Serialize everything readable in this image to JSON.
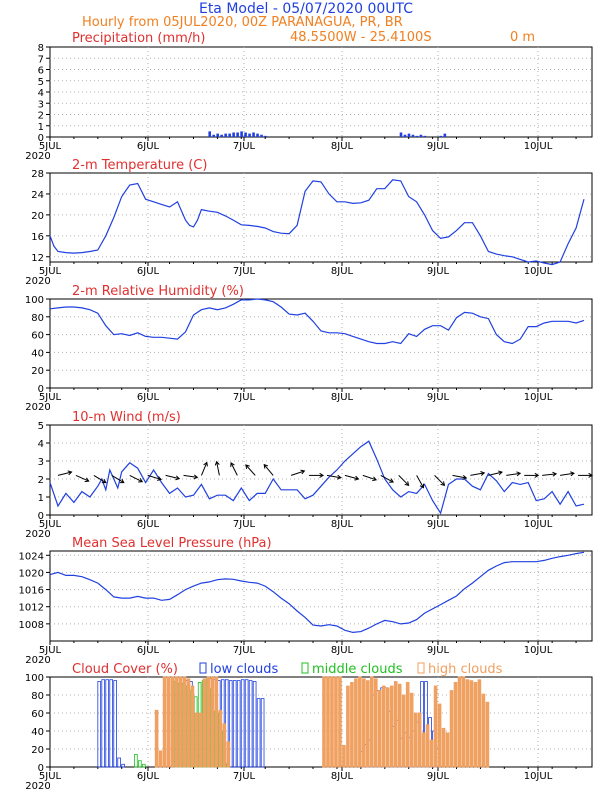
{
  "header": {
    "title": "Eta Model - 05/07/2020 00UTC",
    "subtitle": "Hourly from 05JUL2020, 00Z  PARANAGUA, PR, BR",
    "coords": "48.5500W - 25.4100S",
    "elevation": "0  m"
  },
  "colors": {
    "title": "#2040e0",
    "subtitle": "#f08020",
    "panel_title": "#e03030",
    "line": "#2040e0",
    "low": "#2040e0",
    "mid": "#20c020",
    "high": "#f0a060",
    "grid": "#b0b0b0"
  },
  "days": [
    "5JUL",
    "6JUL",
    "7JUL",
    "8JUL",
    "9JUL",
    "10JUL"
  ],
  "year_label": "2020",
  "chart_data": [
    {
      "id": "precip",
      "type": "bar",
      "title": "Precipitation (mm/h)",
      "ylim": [
        0,
        8
      ],
      "yticks": [
        0,
        1,
        2,
        3,
        4,
        5,
        6,
        7,
        8
      ],
      "series": [
        {
          "name": "Precipitation",
          "x": [
            40,
            41,
            42,
            43,
            44,
            45,
            46,
            47,
            48,
            49,
            50,
            51,
            52,
            53,
            54,
            88,
            89,
            90,
            91,
            92,
            93,
            94,
            98,
            99
          ],
          "values": [
            0.5,
            0.2,
            0.3,
            0.2,
            0.3,
            0.3,
            0.4,
            0.4,
            0.5,
            0.4,
            0.3,
            0.4,
            0.3,
            0.2,
            0.1,
            0.4,
            0.2,
            0.3,
            0.2,
            0.1,
            0.2,
            0.1,
            0.1,
            0.3
          ]
        }
      ]
    },
    {
      "id": "temp",
      "type": "line",
      "title": "2-m Temperature (C)",
      "ylim": [
        11,
        28
      ],
      "yticks": [
        12,
        16,
        20,
        24,
        28
      ],
      "series": [
        {
          "name": "Temperature",
          "x": [
            0,
            1,
            2,
            4,
            6,
            8,
            10,
            12,
            14,
            16,
            18,
            20,
            22,
            24,
            26,
            28,
            30,
            32,
            34,
            35,
            36,
            37,
            38,
            40,
            42,
            44,
            46,
            48,
            50,
            52,
            54,
            56,
            58,
            60,
            62,
            64,
            66,
            68,
            70,
            72,
            74,
            76,
            78,
            80,
            82,
            84,
            86,
            88,
            90,
            92,
            94,
            96,
            98,
            100,
            102,
            104,
            106,
            108,
            110,
            112,
            114,
            116,
            118,
            120,
            122,
            124,
            126,
            128,
            130,
            132,
            134
          ],
          "values": [
            16,
            14,
            13,
            12.8,
            12.7,
            12.8,
            13,
            13.3,
            16,
            19.5,
            23.5,
            25.7,
            26,
            23,
            22.5,
            22,
            21.5,
            22.5,
            19,
            18,
            17.7,
            19,
            21,
            20.7,
            20.5,
            19.8,
            19,
            18.1,
            18,
            17.8,
            17.5,
            16.8,
            16.5,
            16.4,
            18,
            24.5,
            26.5,
            26.3,
            24,
            22.5,
            22.5,
            22.2,
            22.3,
            22.8,
            25,
            25,
            26.7,
            26.5,
            23.5,
            22.5,
            20,
            17,
            15.5,
            15.8,
            17,
            18.5,
            18.5,
            16,
            13,
            12.5,
            12.2,
            12,
            11.5,
            11,
            11.2,
            10.8,
            10.5,
            11,
            14.5,
            17.5,
            23
          ]
        }
      ]
    },
    {
      "id": "rh",
      "type": "line",
      "title": "2-m Relative Humidity (%)",
      "ylim": [
        0,
        100
      ],
      "yticks": [
        0,
        20,
        40,
        60,
        80,
        100
      ],
      "series": [
        {
          "name": "Relative Humidity",
          "x": [
            0,
            2,
            4,
            6,
            8,
            10,
            12,
            14,
            16,
            18,
            20,
            22,
            24,
            26,
            28,
            30,
            32,
            34,
            36,
            38,
            40,
            42,
            44,
            46,
            48,
            50,
            52,
            54,
            56,
            58,
            60,
            62,
            64,
            66,
            68,
            70,
            72,
            74,
            76,
            78,
            80,
            82,
            84,
            86,
            88,
            90,
            92,
            94,
            96,
            98,
            100,
            102,
            104,
            106,
            108,
            110,
            112,
            114,
            116,
            118,
            120,
            122,
            124,
            126,
            128,
            130,
            132,
            134
          ],
          "values": [
            89,
            90,
            91,
            91,
            90,
            88,
            84,
            70,
            60,
            61,
            59,
            62,
            58,
            57,
            57,
            56,
            55,
            63,
            82,
            88,
            90,
            88,
            90,
            94,
            99,
            99,
            100,
            99,
            97,
            91,
            83,
            82,
            84,
            75,
            64,
            62,
            62,
            61,
            58,
            55,
            52,
            50,
            50,
            52,
            50,
            61,
            58,
            66,
            70,
            70,
            65,
            79,
            85,
            84,
            80,
            78,
            60,
            52,
            50,
            55,
            69,
            69,
            73,
            75,
            75,
            75,
            73,
            76
          ]
        }
      ]
    },
    {
      "id": "wind",
      "type": "line",
      "title": "10-m Wind (m/s)",
      "ylim": [
        0,
        5
      ],
      "yticks": [
        0,
        1,
        2,
        3,
        4,
        5
      ],
      "series": [
        {
          "name": "Wind speed",
          "x": [
            0,
            2,
            4,
            6,
            8,
            10,
            12,
            13,
            14,
            15,
            16,
            17,
            18,
            20,
            22,
            24,
            26,
            28,
            30,
            32,
            34,
            36,
            38,
            40,
            42,
            44,
            46,
            48,
            50,
            52,
            54,
            56,
            58,
            60,
            62,
            64,
            66,
            68,
            70,
            72,
            74,
            76,
            78,
            80,
            82,
            84,
            86,
            88,
            90,
            92,
            94,
            96,
            98,
            100,
            102,
            104,
            106,
            108,
            110,
            112,
            114,
            116,
            118,
            120,
            122,
            124,
            126,
            128,
            130,
            132,
            134
          ],
          "values": [
            1.8,
            0.5,
            1.2,
            0.7,
            1.3,
            1.0,
            1.6,
            2.0,
            1.4,
            2.5,
            2.0,
            1.5,
            2.4,
            2.9,
            2.6,
            1.8,
            2.5,
            1.8,
            1.2,
            1.5,
            1.0,
            1.1,
            1.7,
            0.9,
            1.1,
            1.1,
            0.8,
            1.5,
            0.8,
            1.2,
            1.2,
            2.0,
            1.4,
            1.4,
            1.4,
            0.9,
            1.1,
            1.6,
            2.1,
            2.5,
            3.0,
            3.4,
            3.8,
            4.1,
            3.1,
            2.0,
            1.4,
            1.0,
            1.3,
            1.2,
            1.7,
            0.8,
            0.1,
            1.7,
            2.0,
            2.0,
            1.6,
            1.4,
            2.3,
            1.9,
            1.3,
            1.8,
            1.7,
            1.8,
            0.8,
            0.9,
            1.3,
            0.6,
            1.3,
            0.5,
            0.6
          ]
        }
      ],
      "barbs_u": [
        0.8,
        1.8,
        1.5,
        2.0,
        1.6,
        2.0,
        1.7,
        1.4,
        0.5,
        -0.3,
        -0.6,
        -0.9,
        -0.5,
        0.3,
        0.8,
        1.2,
        1.5,
        1.8,
        1.3,
        0.8,
        0.5,
        0.6,
        1.6,
        2.2,
        2.5,
        2.0,
        1.2,
        1.8,
        2.6,
        1.6
      ],
      "barbs_v": [
        0.2,
        -0.8,
        -0.9,
        -1.2,
        -0.8,
        -0.6,
        -0.4,
        -0.2,
        1.2,
        1.5,
        1.2,
        1.0,
        0.6,
        0.1,
        0.0,
        -0.2,
        -0.4,
        -0.6,
        -0.7,
        -0.8,
        -0.9,
        -0.6,
        -0.3,
        0.4,
        0.6,
        0.3,
        0.0,
        0.2,
        0.4,
        0.0
      ]
    },
    {
      "id": "mslp",
      "type": "line",
      "title": "Mean Sea Level Pressure (hPa)",
      "ylim": [
        1004,
        1025
      ],
      "yticks": [
        1008,
        1012,
        1016,
        1020,
        1024
      ],
      "series": [
        {
          "name": "MSLP",
          "x": [
            0,
            2,
            4,
            6,
            8,
            10,
            12,
            14,
            16,
            18,
            20,
            22,
            24,
            26,
            28,
            30,
            32,
            34,
            36,
            38,
            40,
            42,
            44,
            46,
            48,
            50,
            52,
            54,
            56,
            58,
            60,
            62,
            64,
            66,
            68,
            70,
            72,
            74,
            76,
            78,
            80,
            82,
            84,
            86,
            88,
            90,
            92,
            94,
            96,
            98,
            100,
            102,
            104,
            106,
            108,
            110,
            112,
            114,
            116,
            118,
            120,
            122,
            124,
            126,
            128,
            130,
            132,
            134
          ],
          "values": [
            1019.5,
            1020,
            1019.3,
            1019.3,
            1019,
            1018.3,
            1017.5,
            1016,
            1014.3,
            1014,
            1014,
            1014.4,
            1014,
            1014,
            1013.5,
            1013.7,
            1014.8,
            1016,
            1016.8,
            1017.5,
            1017.8,
            1018.3,
            1018.5,
            1018.4,
            1018,
            1017.7,
            1017.5,
            1016.8,
            1015.5,
            1014,
            1012.7,
            1011,
            1009.5,
            1007.7,
            1007.5,
            1007.8,
            1007.5,
            1006.5,
            1006,
            1006.2,
            1007,
            1008,
            1008.8,
            1008.5,
            1008,
            1008.2,
            1009,
            1010.5,
            1011.5,
            1012.5,
            1013.5,
            1014.5,
            1016.2,
            1017.5,
            1019,
            1020.5,
            1021.5,
            1022.3,
            1022.5,
            1022.5,
            1022.5,
            1022.5,
            1022.8,
            1023.3,
            1023.7,
            1024,
            1024.4,
            1024.7
          ]
        }
      ]
    },
    {
      "id": "cloud",
      "type": "bar",
      "title": "Cloud Cover (%)",
      "ylim": [
        0,
        100
      ],
      "yticks": [
        0,
        20,
        40,
        60,
        80,
        100
      ],
      "legend": [
        "low clouds",
        "middle clouds",
        "high clouds"
      ],
      "series": [
        {
          "name": "low clouds",
          "x": [
            12,
            13,
            14,
            15,
            16,
            17,
            18,
            31,
            32,
            33,
            34,
            35,
            37,
            38,
            39,
            40,
            41,
            42,
            43,
            44,
            45,
            46,
            47,
            48,
            49,
            50,
            51,
            52,
            53,
            54,
            78,
            79,
            80,
            81,
            82,
            83,
            84,
            85,
            86,
            87,
            88,
            89,
            90,
            91,
            92,
            93,
            94,
            95,
            96,
            97
          ],
          "values": [
            95,
            97,
            97,
            97,
            96,
            10,
            3,
            6,
            92,
            93,
            96,
            95,
            12,
            20,
            70,
            98,
            97,
            96,
            97,
            97,
            96,
            96,
            96,
            97,
            97,
            96,
            95,
            76,
            76,
            0,
            17,
            25,
            30,
            80,
            85,
            88,
            88,
            62,
            45,
            52,
            32,
            38,
            33,
            40,
            50,
            95,
            95,
            55,
            40,
            21
          ]
        },
        {
          "name": "middle clouds",
          "x": [
            21,
            22,
            23,
            24,
            25,
            26,
            27,
            31,
            32,
            33,
            34,
            35,
            36,
            37,
            38,
            39,
            40,
            41,
            42,
            43,
            44,
            45,
            46,
            47,
            48,
            49,
            50,
            51,
            52,
            53,
            54,
            55,
            56,
            57,
            58,
            59,
            60,
            61,
            62
          ],
          "values": [
            14,
            7,
            3,
            0,
            0,
            0,
            0,
            95,
            93,
            93,
            90,
            85,
            78,
            94,
            96,
            98,
            87,
            62,
            60,
            40,
            4,
            0,
            0,
            0,
            0,
            0,
            0,
            0,
            0,
            0,
            0,
            0,
            0,
            0,
            0,
            0,
            0,
            0,
            0
          ]
        },
        {
          "name": "high clouds",
          "x": [
            26,
            27,
            28,
            29,
            30,
            31,
            32,
            33,
            34,
            35,
            36,
            37,
            38,
            39,
            40,
            41,
            42,
            43,
            44,
            68,
            69,
            70,
            71,
            72,
            73,
            74,
            75,
            76,
            77,
            78,
            79,
            80,
            81,
            82,
            83,
            84,
            85,
            86,
            87,
            88,
            89,
            90,
            91,
            92,
            93,
            94,
            95,
            96,
            97,
            98,
            99,
            100,
            101,
            102,
            103,
            104,
            105,
            106,
            107,
            108,
            109
          ],
          "values": [
            63,
            18,
            100,
            100,
            100,
            100,
            100,
            100,
            98,
            90,
            60,
            60,
            98,
            100,
            100,
            100,
            63,
            48,
            28,
            100,
            100,
            100,
            100,
            100,
            24,
            90,
            94,
            98,
            100,
            98,
            96,
            100,
            98,
            85,
            90,
            88,
            90,
            95,
            92,
            80,
            94,
            82,
            60,
            60,
            38,
            47,
            30,
            90,
            70,
            43,
            38,
            85,
            94,
            100,
            100,
            97,
            96,
            94,
            97,
            81,
            72
          ]
        }
      ]
    }
  ]
}
